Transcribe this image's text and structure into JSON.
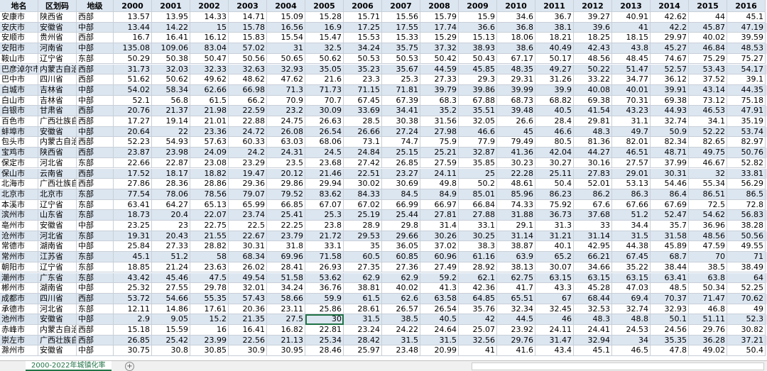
{
  "table": {
    "header": [
      "地名",
      "区划码",
      "地级",
      "2000",
      "2001",
      "2002",
      "2003",
      "2004",
      "2005",
      "2006",
      "2007",
      "2008",
      "2009",
      "2010",
      "2011",
      "2012",
      "2013",
      "2014",
      "2015",
      "2016"
    ],
    "rows": [
      [
        "安康市",
        "陕西省",
        "西部",
        13.57,
        13.95,
        14.33,
        14.71,
        15.09,
        15.28,
        15.71,
        15.56,
        15.79,
        15.9,
        34.6,
        36.7,
        39.27,
        40.91,
        42.62,
        44,
        45.1
      ],
      [
        "安庆市",
        "安徽省",
        "中部",
        13.44,
        14.22,
        15,
        15.78,
        16.56,
        16.9,
        17.25,
        17.55,
        17.74,
        36.6,
        36.8,
        38.1,
        39.6,
        41,
        42.2,
        45.87,
        47.19
      ],
      [
        "安顺市",
        "贵州省",
        "西部",
        16.7,
        16.41,
        16.12,
        15.83,
        15.54,
        15.47,
        15.53,
        15.33,
        15.29,
        15.13,
        18.06,
        18.21,
        18.25,
        18.15,
        29.97,
        40.02,
        39.59
      ],
      [
        "安阳市",
        "河南省",
        "中部",
        135.08,
        109.06,
        83.04,
        57.02,
        31,
        32.5,
        34.24,
        35.75,
        37.32,
        38.93,
        38.6,
        40.49,
        42.43,
        43.8,
        45.27,
        46.84,
        48.53
      ],
      [
        "鞍山市",
        "辽宁省",
        "东部",
        50.29,
        50.38,
        50.47,
        50.56,
        50.65,
        50.62,
        50.53,
        50.53,
        50.42,
        50.43,
        67.17,
        50.17,
        48.56,
        48.45,
        74.67,
        75.29,
        75.27
      ],
      [
        "巴彦淖尔市",
        "内蒙古自治",
        "西部",
        31.73,
        32.03,
        32.33,
        32.63,
        32.93,
        35.05,
        35.23,
        35.67,
        44.59,
        45.85,
        48.35,
        49.27,
        50.22,
        51.47,
        52.57,
        53.43,
        54.17
      ],
      [
        "巴中市",
        "四川省",
        "西部",
        51.62,
        50.62,
        49.62,
        48.62,
        47.62,
        21.6,
        23.3,
        25.3,
        27.33,
        29.3,
        29.31,
        31.26,
        33.22,
        34.77,
        36.12,
        37.52,
        39.1
      ],
      [
        "白城市",
        "吉林省",
        "中部",
        54.02,
        58.34,
        62.66,
        66.98,
        71.3,
        71.73,
        71.15,
        71.81,
        39.79,
        39.86,
        39.99,
        39.9,
        40.08,
        40.01,
        39.91,
        43.14,
        44.35
      ],
      [
        "白山市",
        "吉林省",
        "中部",
        52.1,
        56.8,
        61.5,
        66.2,
        70.9,
        70.7,
        67.45,
        67.39,
        68.3,
        67.88,
        68.73,
        68.82,
        69.38,
        70.31,
        69.38,
        73.12,
        75.18
      ],
      [
        "白银市",
        "甘肃省",
        "西部",
        20.76,
        21.37,
        21.98,
        22.59,
        23.2,
        30.09,
        33.69,
        34.41,
        35.2,
        35.51,
        39.48,
        40.5,
        41.54,
        43.23,
        44.93,
        46.53,
        47.91
      ],
      [
        "百色市",
        "广西壮族自",
        "西部",
        17.27,
        19.14,
        21.01,
        22.88,
        24.75,
        26.63,
        28.5,
        30.38,
        31.56,
        32.05,
        26.6,
        28.4,
        29.81,
        31.1,
        32.74,
        34.1,
        35.19
      ],
      [
        "蚌埠市",
        "安徽省",
        "中部",
        20.64,
        22,
        23.36,
        24.72,
        26.08,
        26.54,
        26.66,
        27.24,
        27.98,
        46.6,
        45,
        46.6,
        48.3,
        49.7,
        50.9,
        52.22,
        53.74
      ],
      [
        "包头市",
        "内蒙古自治",
        "西部",
        52.23,
        54.93,
        57.63,
        60.33,
        63.03,
        68.06,
        73.1,
        74.7,
        75.9,
        77.9,
        79.49,
        80.5,
        81.36,
        82.01,
        82.34,
        82.65,
        82.97
      ],
      [
        "宝鸡市",
        "陕西省",
        "西部",
        23.87,
        23.98,
        24.09,
        24.2,
        24.31,
        24.5,
        24.84,
        25.15,
        25.21,
        32.87,
        41.36,
        42.04,
        44.27,
        46.51,
        48.71,
        49.75,
        50.76
      ],
      [
        "保定市",
        "河北省",
        "东部",
        22.66,
        22.87,
        23.08,
        23.29,
        23.5,
        23.68,
        27.42,
        26.85,
        27.59,
        35.85,
        30.23,
        30.27,
        30.16,
        27.57,
        37.99,
        46.67,
        52.82
      ],
      [
        "保山市",
        "云南省",
        "西部",
        17.52,
        18.17,
        18.82,
        19.47,
        20.12,
        21.46,
        22.51,
        23.27,
        24.11,
        25,
        22.28,
        25.11,
        27.83,
        29.01,
        30.31,
        32,
        33.81
      ],
      [
        "北海市",
        "广西壮族自",
        "西部",
        27.86,
        28.36,
        28.86,
        29.36,
        29.86,
        29.94,
        30.02,
        30.69,
        49.8,
        50.2,
        48.61,
        50.4,
        52.01,
        53.13,
        54.46,
        55.34,
        56.29
      ],
      [
        "北京市",
        "北京市",
        "东部",
        77.54,
        78.06,
        78.56,
        79.07,
        79.52,
        83.62,
        84.33,
        84.5,
        84.9,
        85.01,
        85.96,
        86.23,
        86.2,
        86.3,
        86.4,
        86.51,
        86.5
      ],
      [
        "本溪市",
        "辽宁省",
        "东部",
        63.41,
        64.27,
        65.13,
        65.99,
        66.85,
        67.07,
        67.02,
        66.99,
        66.97,
        66.84,
        74.33,
        75.92,
        67.6,
        67.66,
        67.69,
        72.5,
        72.8
      ],
      [
        "滨州市",
        "山东省",
        "东部",
        18.73,
        20.4,
        22.07,
        23.74,
        25.41,
        25.3,
        25.19,
        25.44,
        27.81,
        27.88,
        31.88,
        36.73,
        37.68,
        51.2,
        52.47,
        54.62,
        56.83
      ],
      [
        "亳州市",
        "安徽省",
        "中部",
        23.25,
        23,
        22.75,
        22.5,
        22.25,
        23.8,
        28.9,
        29.8,
        31.4,
        33.1,
        29.1,
        31.3,
        33,
        34.4,
        35.7,
        36.96,
        38.28
      ],
      [
        "沧州市",
        "河北省",
        "东部",
        19.31,
        20.43,
        21.55,
        22.67,
        23.79,
        21.72,
        29.53,
        29.66,
        30.26,
        30.25,
        31.14,
        31.21,
        31.14,
        31.5,
        31.58,
        48.56,
        50.56
      ],
      [
        "常德市",
        "湖南省",
        "中部",
        25.84,
        27.33,
        28.82,
        30.31,
        31.8,
        33.1,
        35,
        36.05,
        37.02,
        38.3,
        38.87,
        40.1,
        42.95,
        44.38,
        45.89,
        47.59,
        49.55
      ],
      [
        "常州市",
        "江苏省",
        "东部",
        45.1,
        51.2,
        58,
        68.34,
        69.96,
        71.58,
        60.5,
        60.85,
        60.96,
        61.16,
        63.9,
        65.2,
        66.21,
        67.45,
        68.7,
        70,
        71
      ],
      [
        "朝阳市",
        "辽宁省",
        "东部",
        18.85,
        21.24,
        23.63,
        26.02,
        28.41,
        26.93,
        27.35,
        27.36,
        27.49,
        28.92,
        38.13,
        30.07,
        34.66,
        35.22,
        38.44,
        38.5,
        38.49
      ],
      [
        "潮州市",
        "广东省",
        "东部",
        43.42,
        45.46,
        47.5,
        49.54,
        51.58,
        53.62,
        62.9,
        62.9,
        59.2,
        62.1,
        62.75,
        63.15,
        63.15,
        63.15,
        63.41,
        63.8,
        64
      ],
      [
        "郴州市",
        "湖南省",
        "中部",
        25.32,
        27.55,
        29.78,
        32.01,
        34.24,
        36.76,
        38.81,
        40.02,
        41.3,
        42.36,
        41.7,
        43.3,
        45.28,
        47.03,
        48.5,
        50.34,
        52.25
      ],
      [
        "成都市",
        "四川省",
        "西部",
        53.72,
        54.66,
        55.35,
        57.43,
        58.66,
        59.9,
        61.5,
        62.6,
        63.58,
        64.85,
        65.51,
        67,
        68.44,
        69.4,
        70.37,
        71.47,
        70.62
      ],
      [
        "承德市",
        "河北省",
        "东部",
        12.11,
        14.86,
        17.61,
        20.36,
        23.11,
        25.86,
        28.61,
        26.57,
        26.54,
        35.76,
        32.34,
        32.45,
        32.53,
        32.74,
        32.93,
        46.8,
        49
      ],
      [
        "池州市",
        "安徽省",
        "中部",
        2.9,
        9.05,
        15.2,
        21.35,
        27.5,
        30,
        31.5,
        38.5,
        40.5,
        42,
        44.5,
        46,
        48.3,
        48.8,
        50.1,
        51.11,
        52.3
      ],
      [
        "赤峰市",
        "内蒙古自治",
        "西部",
        15.18,
        15.59,
        16,
        16.41,
        16.82,
        22.81,
        23.24,
        24.22,
        24.64,
        25.07,
        23.92,
        24.11,
        24.41,
        24.53,
        24.56,
        29.76,
        30.82
      ],
      [
        "崇左市",
        "广西壮族自",
        "西部",
        26.85,
        25.42,
        23.99,
        22.56,
        21.13,
        25.34,
        28.42,
        31.5,
        31.5,
        32.56,
        29.76,
        31.47,
        32.94,
        34,
        35.35,
        36.28,
        37.21
      ],
      [
        "滁州市",
        "安徽省",
        "中部",
        30.75,
        30.8,
        30.85,
        30.9,
        30.95,
        28.46,
        25.97,
        23.48,
        20.99,
        41,
        41.6,
        43.4,
        45.1,
        46.5,
        47.8,
        49.02,
        50.4
      ]
    ]
  },
  "sheet_tab": "2000-2022年城镇化率"
}
